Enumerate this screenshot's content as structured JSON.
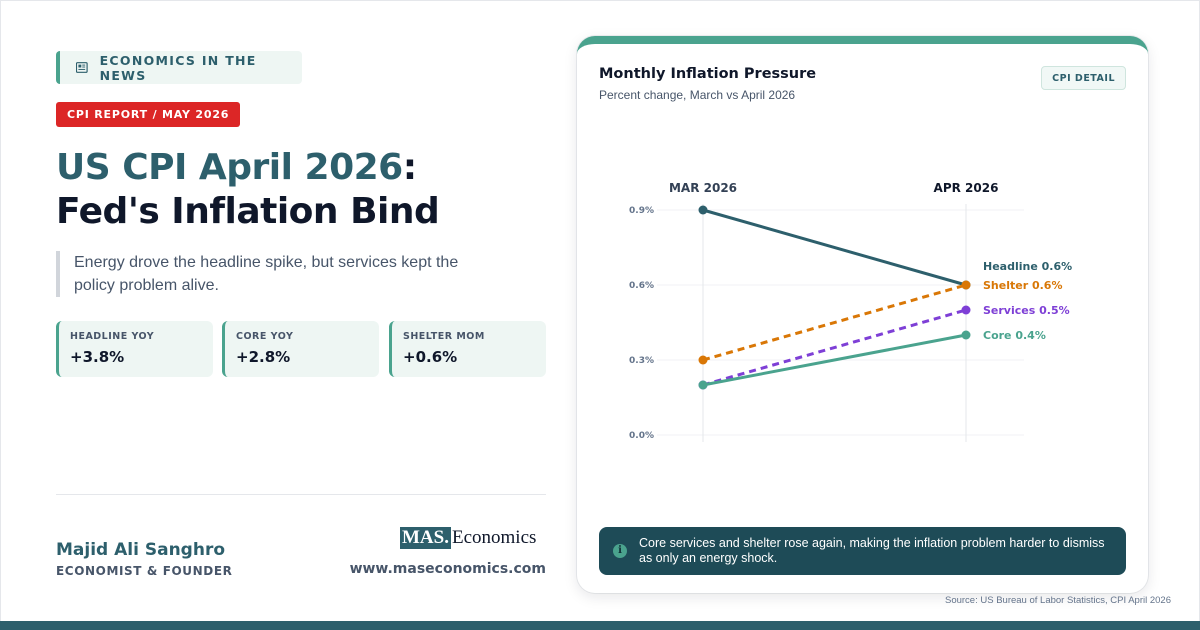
{
  "header": {
    "section_pill": "ECONOMICS IN THE NEWS",
    "report_badge": "CPI REPORT / MAY 2026",
    "title_line1": "US CPI April 2026",
    "title_colon": ":",
    "title_line2": "Fed's Inflation Bind",
    "quote": "Energy drove the headline spike, but services kept the policy problem alive."
  },
  "stats": [
    {
      "label": "HEADLINE YOY",
      "value": "+3.8%"
    },
    {
      "label": "CORE YOY",
      "value": "+2.8%"
    },
    {
      "label": "SHELTER MOM",
      "value": "+0.6%"
    }
  ],
  "author": {
    "name": "Majid Ali Sanghro",
    "role": "ECONOMIST & FOUNDER"
  },
  "brand": {
    "logo_mas": "MAS.",
    "logo_economics": "Economics",
    "website": "www.maseconomics.com"
  },
  "card": {
    "title": "Monthly Inflation Pressure",
    "subtitle": "Percent change, March vs April 2026",
    "detail_button": "CPI DETAIL",
    "note": "Core services and shelter rose again, making the inflation problem harder to dismiss as only an energy shock."
  },
  "source": "Source: US Bureau of Labor Statistics, CPI April 2026",
  "icons": {
    "news": "newspaper-icon",
    "info": "info-icon"
  },
  "colors": {
    "teal_dark": "#2d5f6c",
    "teal_accent": "#4aa38e",
    "red_badge": "#dc2626",
    "shelter": "#d97706",
    "headline": "#2d5f6c",
    "services": "#7e3fd6",
    "core": "#4aa38e"
  },
  "chart_data": {
    "type": "line",
    "title": "Monthly Inflation Pressure",
    "subtitle": "Percent change, March vs April 2026",
    "categories": [
      "MAR 2026",
      "APR 2026"
    ],
    "ylim": [
      0,
      0.9
    ],
    "yticks": [
      {
        "value": 0.9,
        "label": "0.9%"
      },
      {
        "value": 0.6,
        "label": "0.6%"
      },
      {
        "value": 0.3,
        "label": "0.3%"
      },
      {
        "value": 0.0,
        "label": "0.0%"
      }
    ],
    "grid": true,
    "series": [
      {
        "name": "Headline",
        "values": [
          0.9,
          0.6
        ],
        "end_label": "Headline 0.6%",
        "color": "#2d5f6c",
        "dashed": false
      },
      {
        "name": "Shelter",
        "values": [
          0.3,
          0.6
        ],
        "end_label": "Shelter 0.6%",
        "color": "#d97706",
        "dashed": true
      },
      {
        "name": "Services",
        "values": [
          0.2,
          0.5
        ],
        "end_label": "Services 0.5%",
        "color": "#7e3fd6",
        "dashed": true
      },
      {
        "name": "Core",
        "values": [
          0.2,
          0.4
        ],
        "end_label": "Core 0.4%",
        "color": "#4aa38e",
        "dashed": false
      }
    ]
  }
}
